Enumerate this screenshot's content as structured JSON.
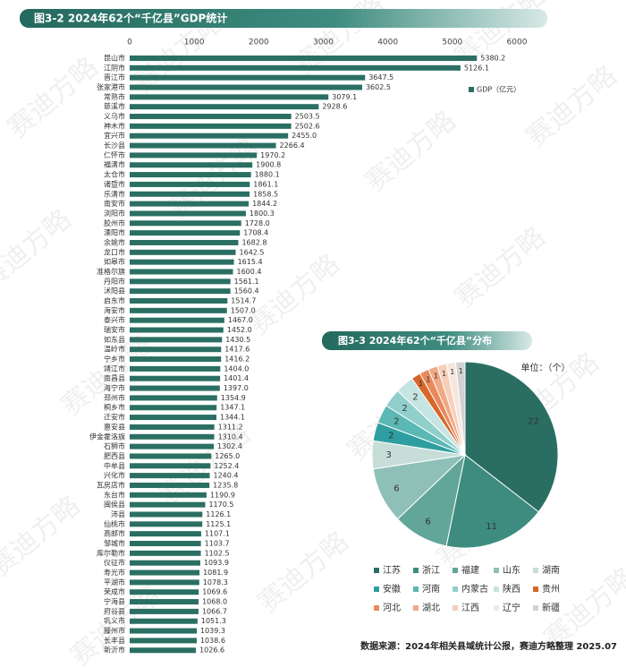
{
  "chart_data": [
    {
      "type": "bar",
      "orientation": "horizontal",
      "title": "图3-2 2024年62个“千亿县”GDP统计",
      "categories": [
        "昆山市",
        "江阴市",
        "晋江市",
        "张家港市",
        "常熟市",
        "慈溪市",
        "义乌市",
        "神木市",
        "宜兴市",
        "长沙县",
        "仁怀市",
        "福清市",
        "太仓市",
        "诸暨市",
        "乐清市",
        "南安市",
        "浏阳市",
        "胶州市",
        "溧阳市",
        "余姚市",
        "龙口市",
        "如皋市",
        "准格尔旗",
        "丹阳市",
        "沭阳县",
        "启东市",
        "海安市",
        "泰兴市",
        "瑞安市",
        "如东县",
        "温岭市",
        "宁乡市",
        "靖江市",
        "南昌县",
        "海宁市",
        "邳州市",
        "桐乡市",
        "迁安市",
        "惠安县",
        "伊金霍洛旗",
        "石狮市",
        "肥西县",
        "中牟县",
        "兴化市",
        "瓦房店市",
        "东台市",
        "闽侯县",
        "沛县",
        "仙桃市",
        "高邮市",
        "邹城市",
        "库尔勒市",
        "仪征市",
        "寿光市",
        "平湖市",
        "荣成市",
        "宁海县",
        "府谷县",
        "巩义市",
        "滕州市",
        "长丰县",
        "新沂市"
      ],
      "series": [
        {
          "name": "GDP（亿元）",
          "color": "#2b6f63",
          "values": [
            5380.2,
            5126.1,
            3647.5,
            3602.5,
            3079.1,
            2928.6,
            2503.5,
            2502.6,
            2455.0,
            2266.4,
            1970.2,
            1900.8,
            1880.1,
            1861.1,
            1858.5,
            1844.2,
            1800.3,
            1728.0,
            1708.4,
            1682.8,
            1642.5,
            1615.4,
            1600.4,
            1561.1,
            1560.4,
            1514.7,
            1507.0,
            1467.0,
            1452.0,
            1430.5,
            1417.6,
            1416.2,
            1404.0,
            1401.4,
            1397.0,
            1354.9,
            1347.1,
            1344.1,
            1311.2,
            1310.4,
            1302.4,
            1265.0,
            1252.4,
            1240.4,
            1235.8,
            1190.9,
            1170.5,
            1126.1,
            1125.1,
            1107.1,
            1103.7,
            1102.5,
            1093.9,
            1081.9,
            1078.3,
            1069.6,
            1068.0,
            1066.7,
            1051.3,
            1039.3,
            1038.6,
            1026.6
          ],
          "value_labels": [
            "5380.2",
            "5126.1",
            "3647.5",
            "3602.5",
            "3079.1",
            "2928.6",
            "2503.5",
            "2502.6",
            "2455.0",
            "2266.4",
            "1970.2",
            "1900.8",
            "1880.1",
            "1861.1",
            "1858.5",
            "1844.2",
            "1800.3",
            "1728.0",
            "1708.4",
            "1682.8",
            "1642.5",
            "1615.4",
            "1600.4",
            "1561.1",
            "1560.4",
            "1514.7",
            "1507.0",
            "1467.0",
            "1452.0",
            "1430.5",
            "1417.6",
            "1416.2",
            "1404.0",
            "1401.4",
            "1397.0",
            "1354.9",
            "1347.1",
            "1344.1",
            "1311.2",
            "1310.4",
            "1302.4",
            "1265.0",
            "1252.4",
            "1240.4",
            "1235.8",
            "1190.9",
            "1170.5",
            "1126.1",
            "1125.1",
            "1107.1",
            "1103.7",
            "1102.5",
            "1093.9",
            "1081.9",
            "1078.3",
            "1069.6",
            "1068.0",
            "1066.7",
            "1051.3",
            "1039.3",
            "1038.6",
            "1026.6"
          ]
        }
      ],
      "xlim": [
        0,
        6000
      ],
      "xticks": [
        0,
        1000,
        2000,
        3000,
        4000,
        5000,
        6000
      ],
      "grid": false,
      "legend": "right"
    },
    {
      "type": "pie",
      "title": "图3-3 2024年62个“千亿县”分布",
      "annotation": "单位：（个）",
      "categories": [
        "江苏",
        "浙江",
        "福建",
        "山东",
        "湖南",
        "安徽",
        "河南",
        "内蒙古",
        "陕西",
        "贵州",
        "河北",
        "湖北",
        "江西",
        "辽宁",
        "新疆"
      ],
      "values": [
        22,
        11,
        6,
        6,
        3,
        2,
        2,
        2,
        2,
        1,
        1,
        1,
        1,
        1,
        1
      ],
      "colors": [
        "#2a6e63",
        "#3d8c7f",
        "#62a599",
        "#8fc0b7",
        "#c6ddd8",
        "#2f9ea0",
        "#5bb8b4",
        "#90cfcb",
        "#c6e5e2",
        "#d8662a",
        "#e8895b",
        "#f0a985",
        "#f6ceb9",
        "#f6e6de",
        "#d2d2d2"
      ],
      "legend": "bottom"
    }
  ],
  "source": "数据来源：2024年相关县域统计公报，赛迪方略整理 2025.07",
  "watermark": "赛迪方略"
}
